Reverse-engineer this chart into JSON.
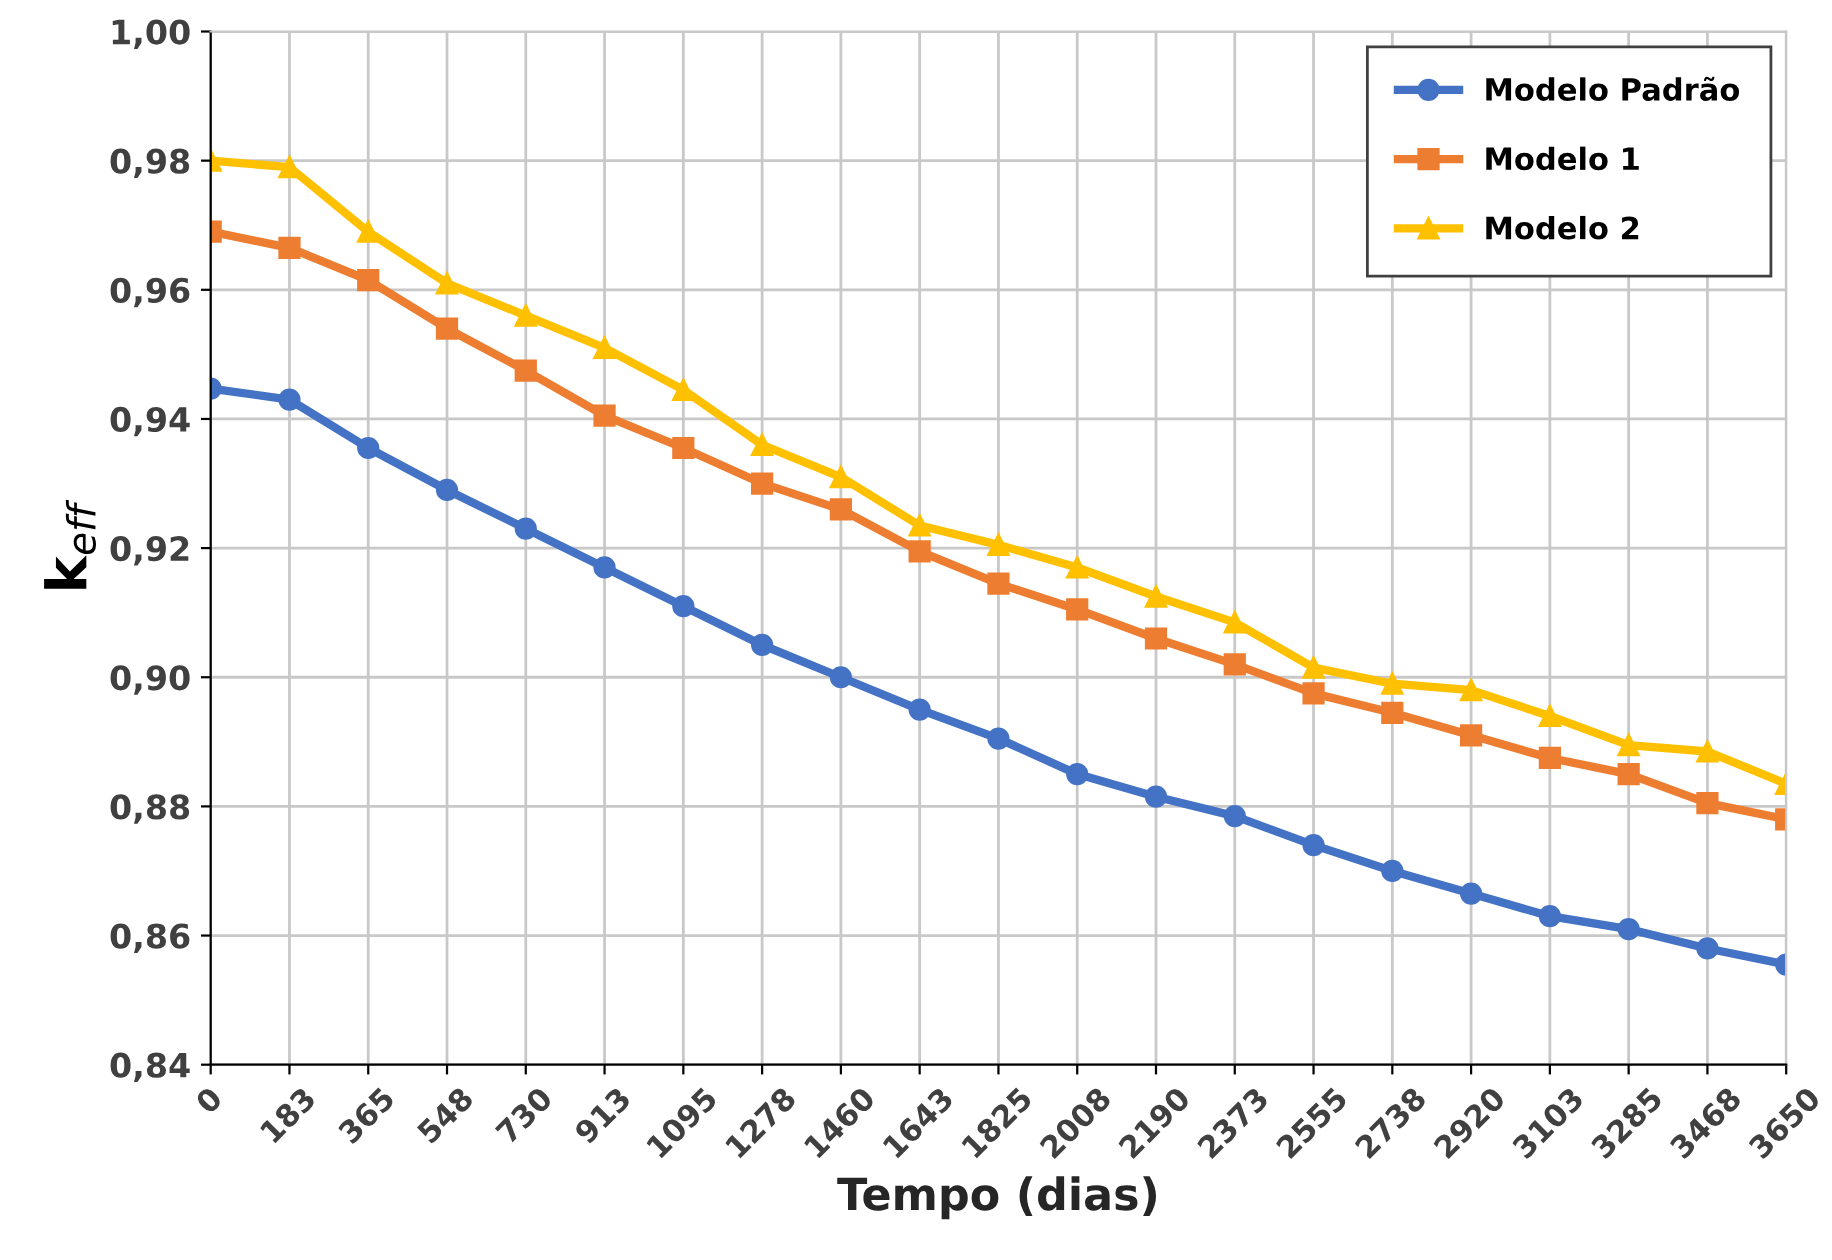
{
  "chart_data": {
    "type": "line",
    "xlabel": "Tempo (dias)",
    "ylabel": "k$_{eff}$",
    "categories": [
      "0",
      "183",
      "365",
      "548",
      "730",
      "913",
      "1095",
      "1278",
      "1460",
      "1643",
      "1825",
      "2008",
      "2190",
      "2373",
      "2555",
      "2738",
      "2920",
      "3103",
      "3285",
      "3468",
      "3650"
    ],
    "series": [
      {
        "name": "Modelo Padrão",
        "color": "#4472c4",
        "marker": "circle",
        "values": [
          0.9447,
          0.943,
          0.9355,
          0.929,
          0.923,
          0.917,
          0.911,
          0.905,
          0.9,
          0.895,
          0.8905,
          0.885,
          0.8815,
          0.8785,
          0.874,
          0.87,
          0.8665,
          0.863,
          0.861,
          0.858,
          0.8555
        ]
      },
      {
        "name": "Modelo 1",
        "color": "#ed7d31",
        "marker": "square",
        "values": [
          0.969,
          0.9665,
          0.9615,
          0.954,
          0.9475,
          0.9405,
          0.9355,
          0.93,
          0.926,
          0.9195,
          0.9145,
          0.9105,
          0.906,
          0.902,
          0.8975,
          0.8945,
          0.891,
          0.8875,
          0.885,
          0.8805,
          0.878
        ]
      },
      {
        "name": "Modelo 2",
        "color": "#ffc000",
        "marker": "triangle",
        "values": [
          0.98,
          0.979,
          0.969,
          0.961,
          0.956,
          0.951,
          0.9445,
          0.936,
          0.931,
          0.9235,
          0.9205,
          0.917,
          0.9125,
          0.9085,
          0.9015,
          0.899,
          0.898,
          0.894,
          0.8895,
          0.8885,
          0.8835
        ]
      }
    ],
    "ylim": [
      0.84,
      1.0
    ],
    "yticks": [
      {
        "value": 0.84,
        "label": "0,84"
      },
      {
        "value": 0.86,
        "label": "0,86"
      },
      {
        "value": 0.88,
        "label": "0,88"
      },
      {
        "value": 0.9,
        "label": "0,90"
      },
      {
        "value": 0.92,
        "label": "0,92"
      },
      {
        "value": 0.94,
        "label": "0,94"
      },
      {
        "value": 0.96,
        "label": "0,96"
      },
      {
        "value": 0.98,
        "label": "0,98"
      },
      {
        "value": 1.0,
        "label": "1,00"
      }
    ],
    "grid": true,
    "legend": "top right",
    "line_style": "solid"
  }
}
